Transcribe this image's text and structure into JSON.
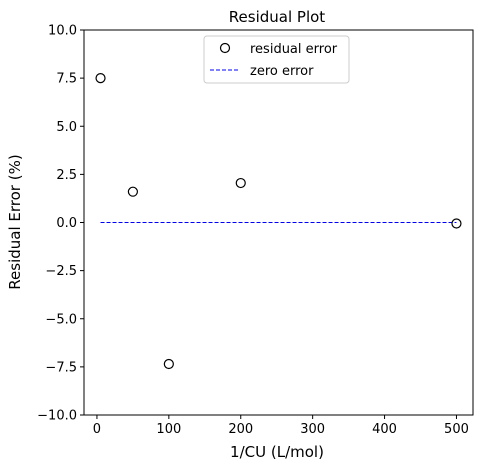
{
  "chart_data": {
    "type": "scatter",
    "title": "Residual Plot",
    "xlabel": "1/CU (L/mol)",
    "ylabel": "Residual Error (%)",
    "xlim": [
      -18,
      523
    ],
    "ylim": [
      -10,
      10
    ],
    "xticks": [
      0,
      100,
      200,
      300,
      400,
      500
    ],
    "xtick_labels": [
      "0",
      "100",
      "200",
      "300",
      "400",
      "500"
    ],
    "yticks": [
      -10,
      -7.5,
      -5,
      -2.5,
      0,
      2.5,
      5,
      7.5,
      10
    ],
    "ytick_labels": [
      "−10.0",
      "−7.5",
      "−5.0",
      "−2.5",
      "0.0",
      "2.5",
      "5.0",
      "7.5",
      "10.0"
    ],
    "grid": false,
    "legend_position": "upper center",
    "series": [
      {
        "name": "residual error",
        "kind": "scatter",
        "marker": "open-circle",
        "color": "#000000",
        "x": [
          5,
          50,
          100,
          200,
          500
        ],
        "y": [
          7.5,
          1.6,
          -7.35,
          2.05,
          -0.05
        ]
      },
      {
        "name": "zero error",
        "kind": "line",
        "style": "dashed",
        "color": "#0000ff",
        "x": [
          5,
          500
        ],
        "y": [
          0,
          0
        ]
      }
    ]
  }
}
